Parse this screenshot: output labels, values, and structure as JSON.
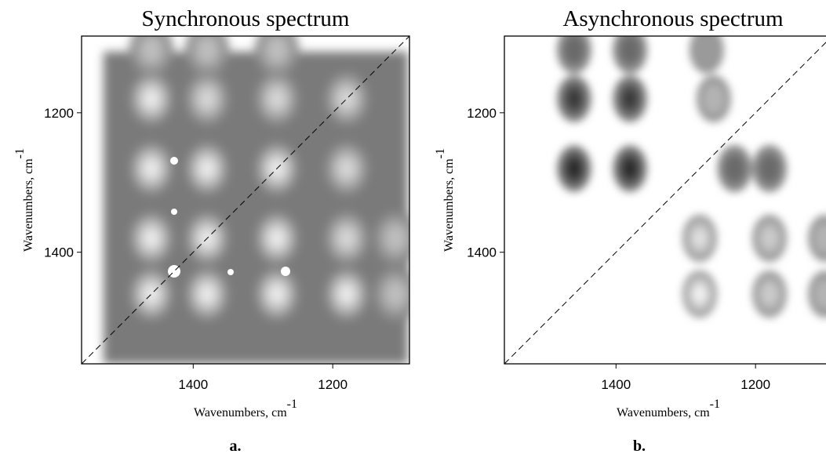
{
  "chart_data": [
    {
      "type": "heatmap",
      "title": "Synchronous spectrum",
      "xlabel": "Wavenumbers, cm",
      "xlabel_sup": "-1",
      "ylabel": "Wavenumbers, cm",
      "ylabel_sup": "-1",
      "caption": "a.",
      "xlim": [
        1560,
        1090
      ],
      "ylim": [
        1560,
        1090
      ],
      "xticks": [
        {
          "value": 1400,
          "label": "1400"
        },
        {
          "value": 1200,
          "label": "1200"
        }
      ],
      "yticks": [
        {
          "value": 1200,
          "label": "1200"
        },
        {
          "value": 1400,
          "label": "1400"
        }
      ],
      "diagonal": "dashed",
      "grid": false,
      "peaks": [
        {
          "x": 1460,
          "y": 1460,
          "level": 6
        },
        {
          "x": 1380,
          "y": 1460,
          "level": 6
        },
        {
          "x": 1460,
          "y": 1380,
          "level": 6
        },
        {
          "x": 1380,
          "y": 1380,
          "level": 5
        },
        {
          "x": 1280,
          "y": 1460,
          "level": 5
        },
        {
          "x": 1460,
          "y": 1280,
          "level": 5
        },
        {
          "x": 1280,
          "y": 1380,
          "level": 5
        },
        {
          "x": 1380,
          "y": 1280,
          "level": 5
        },
        {
          "x": 1280,
          "y": 1280,
          "level": 5
        },
        {
          "x": 1180,
          "y": 1460,
          "level": 5
        },
        {
          "x": 1460,
          "y": 1180,
          "level": 5
        },
        {
          "x": 1180,
          "y": 1380,
          "level": 4
        },
        {
          "x": 1380,
          "y": 1180,
          "level": 4
        },
        {
          "x": 1180,
          "y": 1280,
          "level": 4
        },
        {
          "x": 1280,
          "y": 1180,
          "level": 4
        },
        {
          "x": 1180,
          "y": 1180,
          "level": 4
        },
        {
          "x": 1460,
          "y": 1110,
          "level": 3
        },
        {
          "x": 1380,
          "y": 1110,
          "level": 3
        },
        {
          "x": 1280,
          "y": 1110,
          "level": 3
        },
        {
          "x": 1110,
          "y": 1460,
          "level": 3
        },
        {
          "x": 1110,
          "y": 1380,
          "level": 3
        }
      ]
    },
    {
      "type": "heatmap",
      "title": "Asynchronous spectrum",
      "xlabel": "Wavenumbers, cm",
      "xlabel_sup": "-1",
      "ylabel": "Wavenumbers, cm",
      "ylabel_sup": "-1",
      "caption": "b.",
      "xlim": [
        1560,
        1090
      ],
      "ylim": [
        1560,
        1090
      ],
      "xticks": [
        {
          "value": 1400,
          "label": "1400"
        },
        {
          "value": 1200,
          "label": "1200"
        }
      ],
      "yticks": [
        {
          "value": 1200,
          "label": "1200"
        },
        {
          "value": 1400,
          "label": "1400"
        }
      ],
      "diagonal": "dashed",
      "grid": false,
      "peaks": [
        {
          "x": 1460,
          "y": 1280,
          "level": -5
        },
        {
          "x": 1380,
          "y": 1280,
          "level": -5
        },
        {
          "x": 1460,
          "y": 1180,
          "level": -4
        },
        {
          "x": 1380,
          "y": 1180,
          "level": -4
        },
        {
          "x": 1460,
          "y": 1110,
          "level": -2
        },
        {
          "x": 1380,
          "y": 1110,
          "level": -2
        },
        {
          "x": 1180,
          "y": 1280,
          "level": -2
        },
        {
          "x": 1230,
          "y": 1280,
          "level": -2
        },
        {
          "x": 1280,
          "y": 1380,
          "level": 4
        },
        {
          "x": 1280,
          "y": 1460,
          "level": 5
        },
        {
          "x": 1180,
          "y": 1380,
          "level": 3
        },
        {
          "x": 1180,
          "y": 1460,
          "level": 3
        },
        {
          "x": 1260,
          "y": 1180,
          "level": 2
        },
        {
          "x": 1270,
          "y": 1110,
          "level": 1
        },
        {
          "x": 1100,
          "y": 1380,
          "level": 2
        },
        {
          "x": 1100,
          "y": 1460,
          "level": 2
        }
      ]
    }
  ]
}
